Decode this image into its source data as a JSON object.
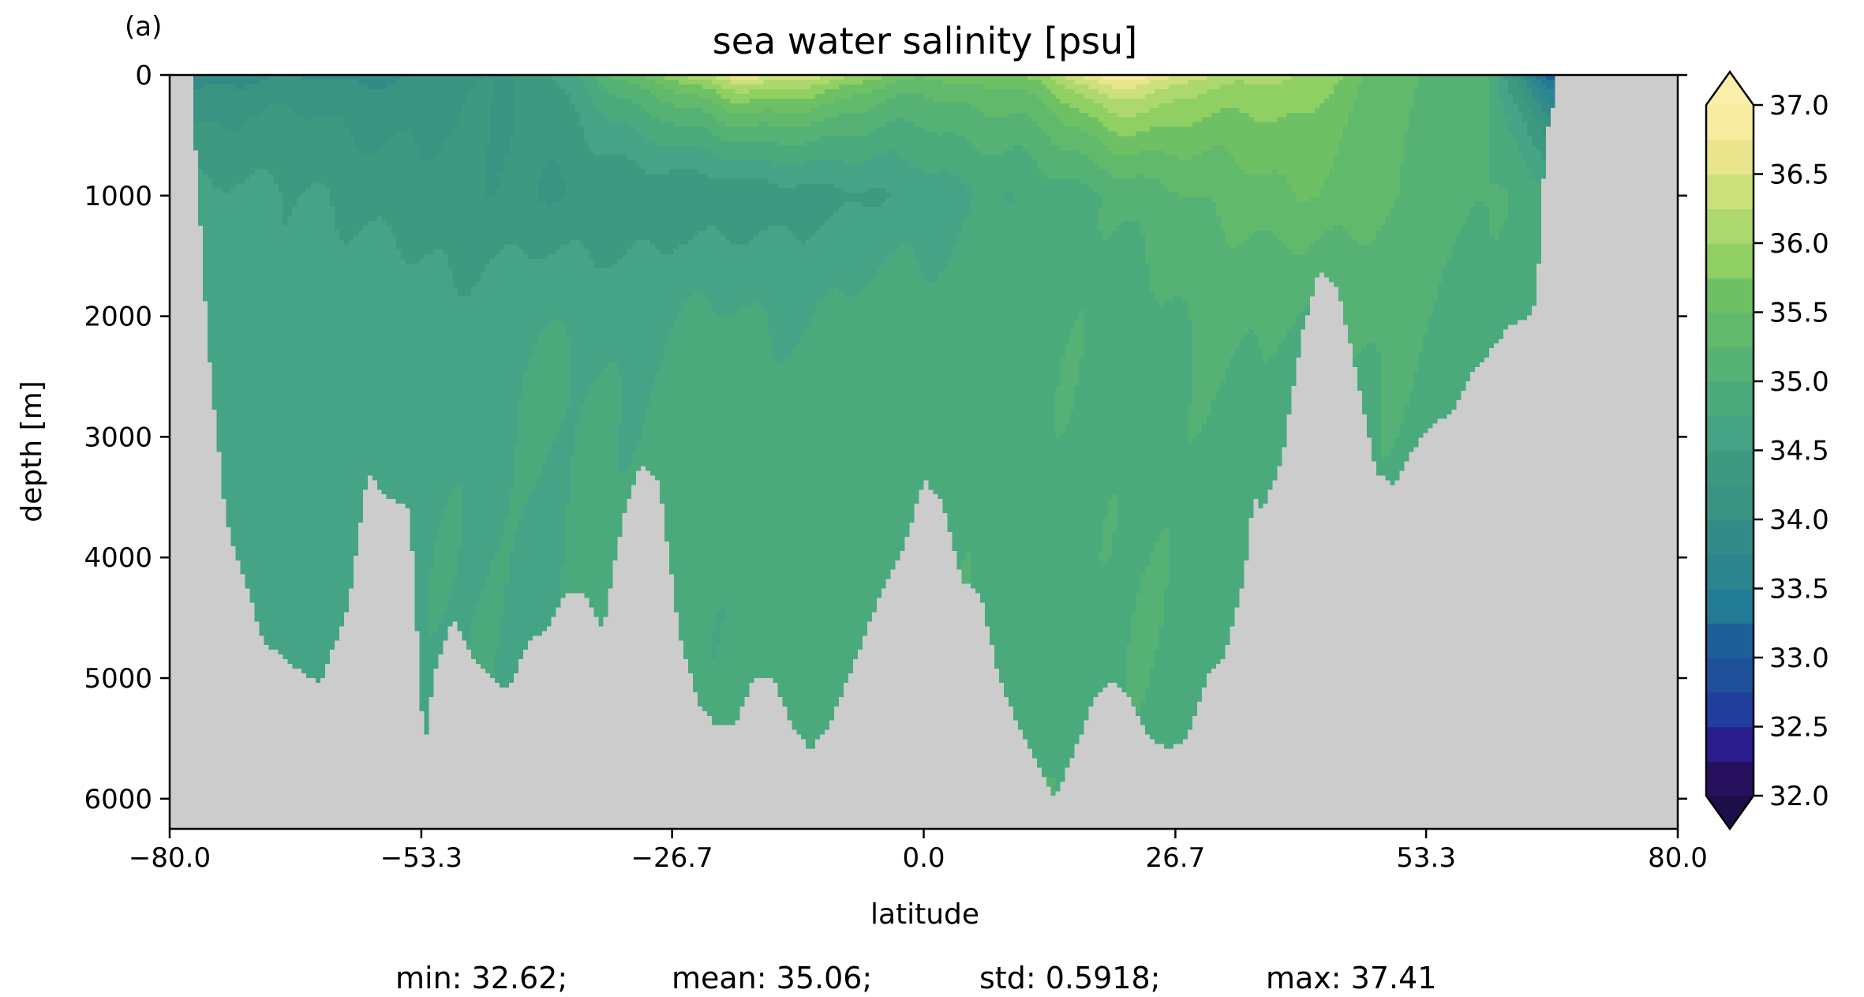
{
  "panel_label": "(a)",
  "chart_data": {
    "type": "heatmap",
    "title": "sea water salinity [psu]",
    "xlabel": "latitude",
    "ylabel": "depth [m]",
    "xlim": [
      -80,
      80
    ],
    "ylim": [
      6250,
      0
    ],
    "y_inverted": true,
    "x_ticks": [
      "−80.0",
      "−53.3",
      "−26.7",
      "0.0",
      "26.7",
      "53.3",
      "80.0"
    ],
    "x_tick_values": [
      -80,
      -53.3,
      -26.7,
      0,
      26.7,
      53.3,
      80
    ],
    "y_ticks": [
      "0",
      "1000",
      "2000",
      "3000",
      "4000",
      "5000",
      "6000"
    ],
    "y_tick_values": [
      0,
      1000,
      2000,
      3000,
      4000,
      5000,
      6000
    ],
    "land_mask_color": "#cccccc",
    "colorbar": {
      "min": 32.0,
      "max": 37.0,
      "step": 0.25,
      "extend": "both",
      "tick_labels": [
        "32.0",
        "32.5",
        "33.0",
        "33.5",
        "34.0",
        "34.5",
        "35.0",
        "35.5",
        "36.0",
        "36.5",
        "37.0"
      ],
      "tick_values": [
        32.0,
        32.5,
        33.0,
        33.5,
        34.0,
        34.5,
        35.0,
        35.5,
        36.0,
        36.5,
        37.0
      ],
      "colors": [
        "#27105d",
        "#2a1c8c",
        "#223e9c",
        "#1f519b",
        "#1e5f9a",
        "#1f6d98",
        "#227b94",
        "#2b868f",
        "#328b87",
        "#3a9482",
        "#3d9a80",
        "#45a486",
        "#4aaa7c",
        "#55b174",
        "#61b96c",
        "#6ec065",
        "#7cc560",
        "#90cf62",
        "#acd86e",
        "#cce07c",
        "#e8e58d",
        "#f7ec9f"
      ],
      "under_color": "#1d0e4a",
      "over_color": "#fbeea8"
    },
    "bathymetry": {
      "lat": [
        -77.5,
        -76,
        -74,
        -72,
        -70,
        -67,
        -64,
        -61,
        -59,
        -57,
        -54.5,
        -53,
        -52,
        -50,
        -48,
        -46,
        -44,
        -42,
        -40,
        -38,
        -36,
        -34,
        -32,
        -30,
        -28,
        -26,
        -24,
        -22,
        -20,
        -18,
        -16,
        -14,
        -12,
        -10,
        -8,
        -6,
        -4,
        -2,
        0,
        2,
        4,
        6,
        8,
        10,
        12,
        14,
        16,
        18,
        20,
        22,
        24,
        26,
        28,
        30,
        32,
        34,
        35,
        36,
        38,
        40,
        42,
        44,
        46,
        48,
        50,
        52,
        54,
        56,
        58,
        60,
        62,
        64,
        65,
        66,
        67
      ],
      "depth_m": [
        300,
        2200,
        3700,
        4200,
        4700,
        4900,
        5050,
        4400,
        3300,
        3500,
        3600,
        5600,
        5000,
        4500,
        4800,
        5000,
        5100,
        4700,
        4600,
        4300,
        4300,
        4600,
        3700,
        3200,
        3400,
        4600,
        5200,
        5400,
        5400,
        5000,
        5000,
        5400,
        5600,
        5400,
        5000,
        4600,
        4200,
        3900,
        3350,
        3550,
        4200,
        4300,
        5000,
        5400,
        5700,
        6000,
        5600,
        5200,
        5000,
        5200,
        5500,
        5600,
        5500,
        5000,
        4800,
        4200,
        3500,
        3600,
        3200,
        2200,
        1600,
        1800,
        2500,
        3300,
        3400,
        3100,
        2900,
        2800,
        2500,
        2300,
        2100,
        2000,
        1900,
        500,
        200
      ]
    },
    "salinity_sections": [
      {
        "lat": [
          -80,
          -65,
          -50,
          -40,
          -30,
          -20,
          -10,
          0,
          10,
          20,
          30,
          40,
          50,
          60,
          66
        ],
        "surface_psu": [
          33.8,
          33.9,
          34.0,
          34.5,
          35.6,
          36.9,
          36.4,
          35.6,
          35.8,
          37.1,
          36.4,
          36.0,
          35.4,
          35.0,
          33.0
        ]
      },
      {
        "lat": [
          -80,
          -65,
          -50,
          -40,
          -30,
          -20,
          -10,
          0,
          10,
          20,
          30,
          40,
          50,
          60,
          66
        ],
        "psu_1000m": [
          34.6,
          34.5,
          34.3,
          34.25,
          34.3,
          34.3,
          34.4,
          34.6,
          34.8,
          35.0,
          35.3,
          35.5,
          35.3,
          35.0,
          34.9
        ]
      },
      {
        "lat": [
          -80,
          -60,
          -40,
          -20,
          0,
          20,
          40,
          60
        ],
        "psu_deep": [
          34.65,
          34.65,
          34.75,
          34.85,
          34.9,
          34.95,
          34.95,
          34.95
        ]
      }
    ],
    "stats": {
      "min": "min: 32.62;",
      "mean": "mean: 35.06;",
      "std": "std: 0.5918;",
      "max": "max: 37.41"
    }
  }
}
